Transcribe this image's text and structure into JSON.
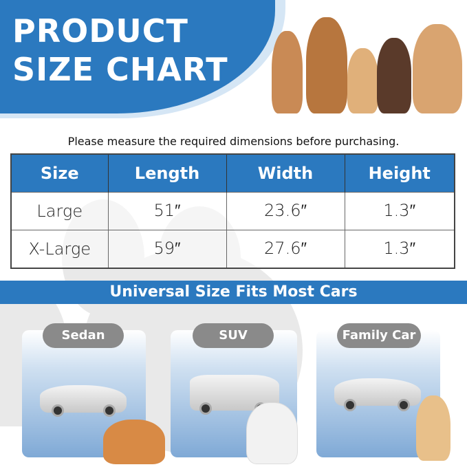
{
  "header": {
    "title_line1": "PRODUCT",
    "title_line2": "SIZE CHART"
  },
  "note": "Please measure the required dimensions before purchasing.",
  "table": {
    "headers": [
      "Size",
      "Length",
      "Width",
      "Height"
    ],
    "rows": [
      [
        "Large",
        "51″",
        "23.6″",
        "1.3″"
      ],
      [
        "X-Large",
        "59″",
        "27.6″",
        "1.3″"
      ]
    ]
  },
  "banner": "Universal Size Fits Most Cars",
  "cars": [
    {
      "label": "Sedan"
    },
    {
      "label": "SUV"
    },
    {
      "label": "Family Car"
    }
  ],
  "colors": {
    "accent": "#2b79bf",
    "pill": "#8a8a8a"
  }
}
